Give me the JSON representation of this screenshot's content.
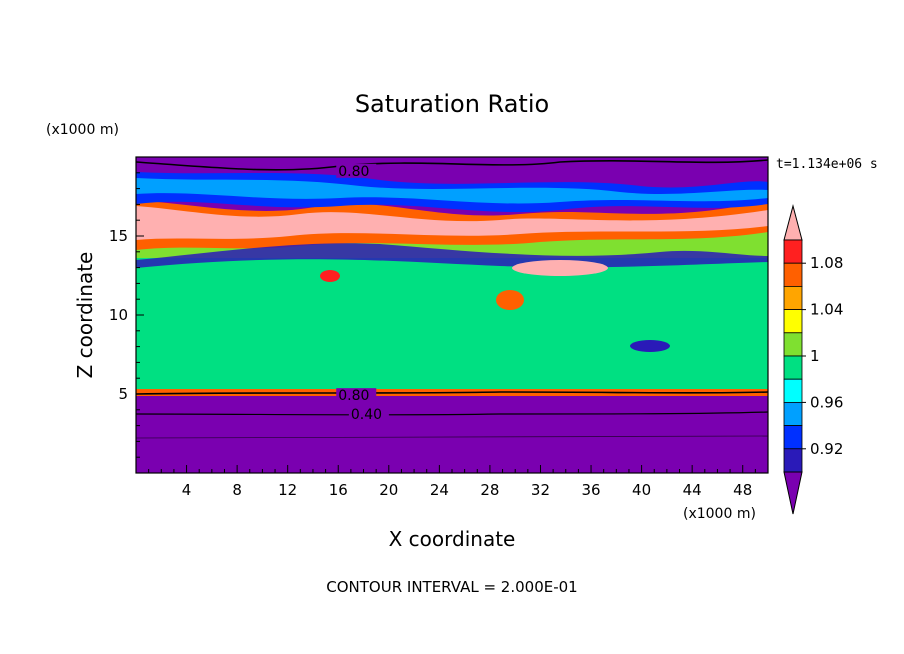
{
  "chart_data": {
    "type": "heatmap",
    "title": "Saturation Ratio",
    "xlabel": "X coordinate",
    "ylabel": "Z coordinate",
    "x_unit": "(x1000 m)",
    "y_unit": "(x1000 m)",
    "time_label": "t=1.134e+06 s",
    "footer": "CONTOUR INTERVAL = 2.000E-01",
    "xlim": [
      0,
      50
    ],
    "ylim": [
      0,
      20
    ],
    "x_ticks": [
      4,
      8,
      12,
      16,
      20,
      24,
      28,
      32,
      36,
      40,
      44,
      48
    ],
    "y_ticks": [
      5,
      10,
      15
    ],
    "contour_labels": [
      {
        "text": "0.80",
        "x": 16,
        "z": 19.0
      },
      {
        "text": "0.80",
        "x": 16,
        "z": 4.8
      },
      {
        "text": "0.40",
        "x": 17,
        "z": 3.6
      }
    ],
    "colorbar": {
      "labels": [
        "1.08",
        "1.04",
        "1",
        "0.96",
        "0.92"
      ],
      "levels": [
        0.9,
        0.92,
        0.94,
        0.96,
        0.98,
        1.0,
        1.02,
        1.04,
        1.06,
        1.08,
        1.1
      ],
      "colors": [
        "#7a00b0",
        "#2a1ab8",
        "#0030ff",
        "#00a0ff",
        "#00ffff",
        "#00e082",
        "#7fe030",
        "#ffff00",
        "#ffa500",
        "#ff6000",
        "#ff2020",
        "#ffb0b0"
      ]
    },
    "layers": [
      {
        "z": [
          0,
          4.9
        ],
        "value": "< 0.90"
      },
      {
        "z": [
          4.9,
          13
        ],
        "value": "≈ 0.98–1.00"
      },
      {
        "z": [
          13,
          17.5
        ],
        "value": "> 1.06"
      },
      {
        "z": [
          17.5,
          19.6
        ],
        "value": "0.90–0.96"
      }
    ]
  }
}
